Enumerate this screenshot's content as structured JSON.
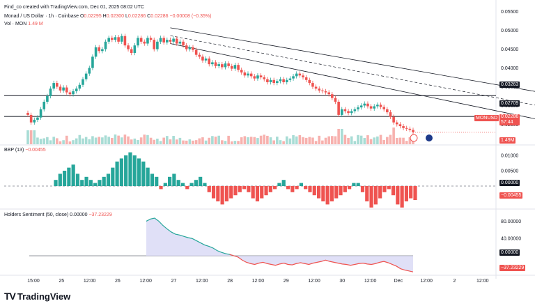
{
  "top_caption": "Find_co created with TradingView.com, Dec 01, 2025 08:02 UTC",
  "legend": {
    "symbol": "Monad / US Dollar · 1h · Coinbase",
    "o_label": "O",
    "o": "0.02295",
    "h_label": "H",
    "h": "0.02300",
    "l_label": "L",
    "l": "0.02286",
    "c_label": "C",
    "c": "0.02286",
    "change": "−0.00008 (−0.35%)",
    "vol_label": "Vol · MON",
    "vol_value": "1.49 M"
  },
  "bbp_legend": {
    "label": "BBP (13)",
    "value": "−0.00455"
  },
  "sent_legend": {
    "label": "Holders Sentiment (50, close)",
    "v1": "0.00000",
    "v2": "−37.23229"
  },
  "price_badges": [
    {
      "text": "0.03263",
      "style": "dark",
      "value": 0.03263
    },
    {
      "text": "0.02709",
      "style": "dark",
      "value": 0.02709
    }
  ],
  "current_badge": {
    "symbol": "MONUSD",
    "price": "0.02286",
    "countdown": "57:44",
    "value": 0.02286
  },
  "vol_badge": "1.49M",
  "bbp_badges": [
    {
      "text": "0.00000",
      "style": "dark"
    },
    {
      "text": "−0.00455",
      "style": "red"
    }
  ],
  "sent_badges": [
    {
      "text": "0.00000",
      "style": "dark"
    },
    {
      "text": "−37.23229",
      "style": "red"
    }
  ],
  "brand": {
    "logo": "TV",
    "name": "TradingView"
  },
  "colors": {
    "up": "#26a69a",
    "down": "#ef5350",
    "upVol": "#a8dcd5",
    "downVol": "#f7b1ae",
    "line": "#131722",
    "sentLine": "#ef5350",
    "sentGreen": "#26a69a",
    "sentFill": "#d8d8f5"
  },
  "chart_data": [
    {
      "type": "candlestick",
      "title": "Monad / US Dollar · 1h · Coinbase",
      "ylim": [
        0.0195,
        0.0555
      ],
      "y_ticks": [
        0.025,
        0.03,
        0.035,
        0.04,
        0.045,
        0.05,
        0.055
      ],
      "y_tick_labels": [
        "0.02500",
        "0.03000",
        "0.03500",
        "0.04000",
        "0.04500",
        "0.05000",
        "0.05500"
      ],
      "x_tick_labels": [
        "15:00",
        "25",
        "12:00",
        "26",
        "12:00",
        "27",
        "12:00",
        "28",
        "12:00",
        "29",
        "12:00",
        "30",
        "12:00",
        "Dec",
        "12:00",
        "2",
        "12:00"
      ],
      "horizontal_lines": [
        0.03263,
        0.02709
      ],
      "channel": {
        "upper": [
          {
            "x": 44,
            "y": 0.0507
          },
          {
            "x": 175,
            "y": 0.031
          }
        ],
        "lower": [
          {
            "x": 44,
            "y": 0.0465
          },
          {
            "x": 175,
            "y": 0.0232
          }
        ],
        "mid": [
          {
            "x": 44,
            "y": 0.0486
          },
          {
            "x": 175,
            "y": 0.0271
          }
        ]
      },
      "price_path": [
        [
          0,
          0.0275
        ],
        [
          1,
          0.0255
        ],
        [
          2,
          0.0262
        ],
        [
          3,
          0.0268
        ],
        [
          4,
          0.029
        ],
        [
          5,
          0.031
        ],
        [
          6,
          0.0325
        ],
        [
          7,
          0.0345
        ],
        [
          8,
          0.036
        ],
        [
          9,
          0.035
        ],
        [
          10,
          0.034
        ],
        [
          11,
          0.0348
        ],
        [
          12,
          0.0335
        ],
        [
          13,
          0.033
        ],
        [
          14,
          0.0338
        ],
        [
          15,
          0.0345
        ],
        [
          16,
          0.0355
        ],
        [
          17,
          0.037
        ],
        [
          18,
          0.0385
        ],
        [
          19,
          0.04
        ],
        [
          20,
          0.043
        ],
        [
          21,
          0.0455
        ],
        [
          22,
          0.0445
        ],
        [
          23,
          0.045
        ],
        [
          24,
          0.047
        ],
        [
          25,
          0.048
        ],
        [
          26,
          0.0475
        ],
        [
          27,
          0.0482
        ],
        [
          28,
          0.047
        ],
        [
          29,
          0.0485
        ],
        [
          30,
          0.046
        ],
        [
          31,
          0.045
        ],
        [
          32,
          0.044
        ],
        [
          33,
          0.046
        ],
        [
          34,
          0.048
        ],
        [
          35,
          0.047
        ],
        [
          36,
          0.0465
        ],
        [
          37,
          0.048
        ],
        [
          38,
          0.0475
        ],
        [
          39,
          0.045
        ],
        [
          40,
          0.047
        ],
        [
          41,
          0.048
        ],
        [
          42,
          0.0468
        ],
        [
          43,
          0.0475
        ],
        [
          44,
          0.047
        ],
        [
          45,
          0.0478
        ],
        [
          46,
          0.0465
        ],
        [
          47,
          0.047
        ],
        [
          48,
          0.046
        ],
        [
          49,
          0.045
        ],
        [
          50,
          0.0455
        ],
        [
          51,
          0.0448
        ],
        [
          52,
          0.0435
        ],
        [
          53,
          0.043
        ],
        [
          54,
          0.042
        ],
        [
          55,
          0.0425
        ],
        [
          56,
          0.041
        ],
        [
          57,
          0.0415
        ],
        [
          58,
          0.0405
        ],
        [
          59,
          0.041
        ],
        [
          60,
          0.0402
        ],
        [
          61,
          0.0412
        ],
        [
          62,
          0.0405
        ],
        [
          63,
          0.0398
        ],
        [
          64,
          0.0408
        ],
        [
          65,
          0.0395
        ],
        [
          66,
          0.0388
        ],
        [
          67,
          0.038
        ],
        [
          68,
          0.0385
        ],
        [
          69,
          0.0378
        ],
        [
          70,
          0.0372
        ],
        [
          71,
          0.038
        ],
        [
          72,
          0.0375
        ],
        [
          73,
          0.037
        ],
        [
          74,
          0.0362
        ],
        [
          75,
          0.0368
        ],
        [
          76,
          0.036
        ],
        [
          77,
          0.0365
        ],
        [
          78,
          0.037
        ],
        [
          79,
          0.0362
        ],
        [
          80,
          0.0368
        ],
        [
          81,
          0.0372
        ],
        [
          82,
          0.0378
        ],
        [
          83,
          0.0385
        ],
        [
          84,
          0.038
        ],
        [
          85,
          0.0375
        ],
        [
          86,
          0.0368
        ],
        [
          87,
          0.036
        ],
        [
          88,
          0.035
        ],
        [
          89,
          0.0345
        ],
        [
          90,
          0.034
        ],
        [
          91,
          0.0338
        ],
        [
          92,
          0.0335
        ],
        [
          93,
          0.033
        ],
        [
          94,
          0.032
        ],
        [
          95,
          0.031
        ],
        [
          96,
          0.0275
        ],
        [
          97,
          0.029
        ],
        [
          98,
          0.0285
        ],
        [
          99,
          0.028
        ],
        [
          100,
          0.0285
        ],
        [
          101,
          0.029
        ],
        [
          102,
          0.0295
        ],
        [
          103,
          0.03
        ],
        [
          104,
          0.0305
        ],
        [
          105,
          0.0298
        ],
        [
          106,
          0.0292
        ],
        [
          107,
          0.0298
        ],
        [
          108,
          0.0302
        ],
        [
          109,
          0.0296
        ],
        [
          110,
          0.029
        ],
        [
          111,
          0.0282
        ],
        [
          112,
          0.027
        ],
        [
          113,
          0.0255
        ],
        [
          114,
          0.025
        ],
        [
          115,
          0.0245
        ],
        [
          116,
          0.024
        ],
        [
          117,
          0.0238
        ],
        [
          118,
          0.0235
        ],
        [
          119,
          0.0229
        ]
      ],
      "volume_scale_max": 1.0
    },
    {
      "type": "bar",
      "title": "BBP (13)",
      "ylim": [
        -0.0075,
        0.0125
      ],
      "y_ticks": [
        0.0,
        0.005,
        0.01
      ],
      "y_tick_labels": [
        "0.00000",
        "0.00500",
        "0.01000"
      ],
      "values_sampled": [
        0.002,
        0.004,
        0.005,
        0.006,
        0.007,
        0.004,
        0.002,
        0.003,
        0.002,
        0.001,
        0.002,
        0.003,
        0.004,
        0.006,
        0.008,
        0.009,
        0.01,
        0.011,
        0.01,
        0.009,
        0.008,
        0.006,
        0.004,
        0.003,
        -0.001,
        0.001,
        0.003,
        0.004,
        0.002,
        0.001,
        -0.001,
        0.001,
        0.002,
        0.003,
        0.001,
        -0.002,
        -0.004,
        -0.005,
        -0.006,
        -0.005,
        -0.004,
        -0.003,
        -0.002,
        -0.001,
        -0.002,
        -0.004,
        -0.005,
        -0.004,
        -0.003,
        -0.002,
        -0.001,
        0.001,
        0.002,
        -0.001,
        -0.002,
        -0.001,
        0.001,
        -0.001,
        -0.002,
        -0.003,
        -0.004,
        -0.005,
        -0.006,
        -0.005,
        -0.004,
        -0.003,
        -0.002,
        -0.001,
        0.001,
        0.001,
        -0.002,
        -0.005,
        -0.007,
        -0.006,
        -0.004,
        -0.002,
        -0.001,
        -0.003,
        -0.006,
        -0.007,
        -0.005,
        -0.004,
        -0.00455
      ]
    },
    {
      "type": "area",
      "title": "Holders Sentiment (50, close)",
      "ylim": [
        -45,
        100
      ],
      "y_ticks": [
        0,
        40,
        80
      ],
      "y_tick_labels": [
        "0.00000",
        "40.00000",
        "80.00000"
      ],
      "values_sampled": [
        80,
        85,
        87,
        80,
        70,
        62,
        55,
        50,
        48,
        45,
        42,
        40,
        35,
        30,
        25,
        22,
        18,
        12,
        8,
        5,
        3,
        0,
        -3,
        -10,
        -15,
        -18,
        -20,
        -17,
        -15,
        -18,
        -20,
        -22,
        -19,
        -17,
        -20,
        -21,
        -18,
        -16,
        -18,
        -20,
        -17,
        -15,
        -13,
        -10,
        -13,
        -15,
        -17,
        -19,
        -20,
        -22,
        -20,
        -18,
        -17,
        -19,
        -20,
        -18,
        -15,
        -13,
        -16,
        -20,
        -24,
        -30,
        -33,
        -35,
        -37.23
      ]
    }
  ]
}
